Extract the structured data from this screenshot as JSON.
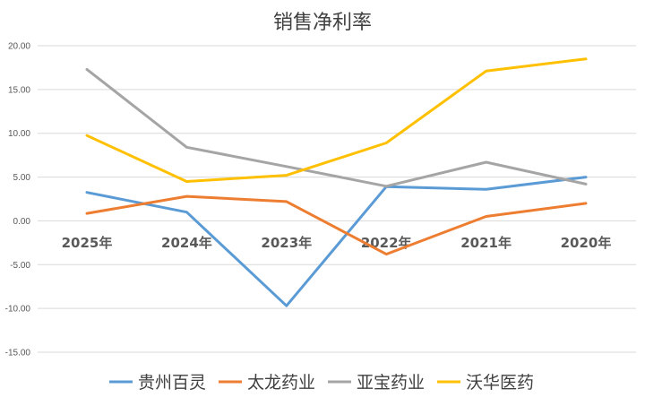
{
  "chart_data": {
    "type": "line",
    "title": "销售净利率",
    "categories": [
      "2025年",
      "2024年",
      "2023年",
      "2022年",
      "2021年",
      "2020年"
    ],
    "ylim": [
      -15,
      20
    ],
    "yticks": [
      "20.00",
      "15.00",
      "10.00",
      "5.00",
      "0.00",
      "-5.00",
      "-10.00",
      "-15.00"
    ],
    "grid": true,
    "legend": "bottom",
    "series": [
      {
        "name": "贵州百灵",
        "color": "#5b9bd5",
        "values": [
          3.25,
          1.0,
          -9.7,
          3.9,
          3.6,
          5.0
        ]
      },
      {
        "name": "太龙药业",
        "color": "#ed7d31",
        "values": [
          0.85,
          2.8,
          2.2,
          -3.8,
          0.5,
          2.0
        ]
      },
      {
        "name": "亚宝药业",
        "color": "#a5a5a5",
        "values": [
          17.3,
          8.4,
          6.2,
          3.95,
          6.7,
          4.2
        ]
      },
      {
        "name": "沃华医药",
        "color": "#ffc000",
        "values": [
          9.75,
          4.5,
          5.2,
          8.9,
          17.1,
          18.5
        ]
      }
    ]
  }
}
